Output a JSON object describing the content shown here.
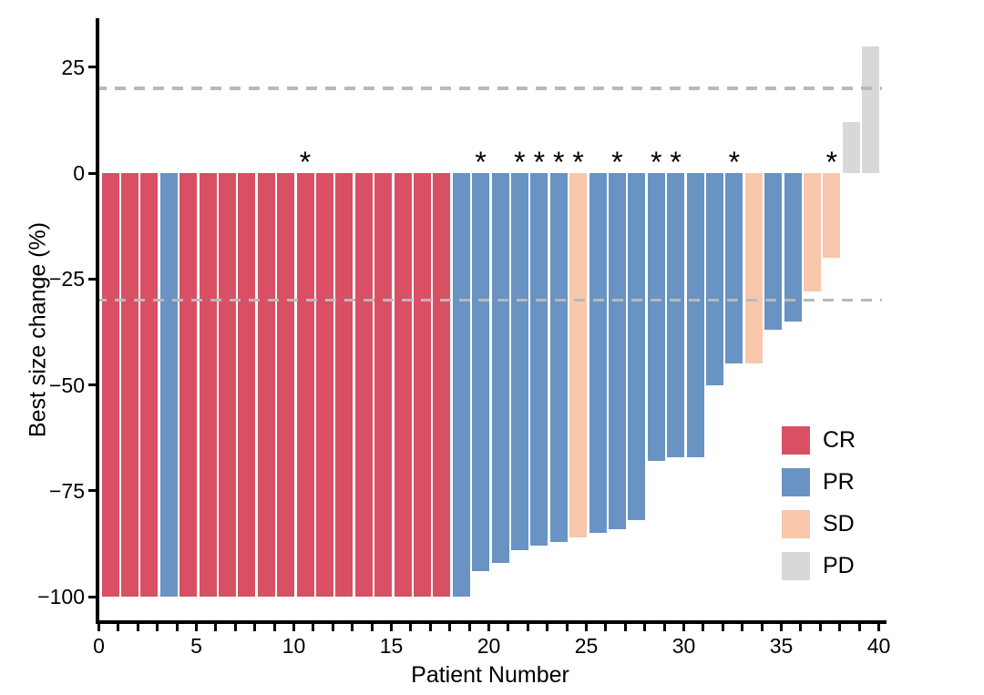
{
  "chart_data": {
    "type": "bar",
    "subtype": "waterfall",
    "title": "",
    "xlabel": "Patient Number",
    "ylabel": "Best size change (%)",
    "x_ticks": [
      0,
      5,
      10,
      15,
      20,
      25,
      30,
      35,
      40
    ],
    "x_minor_ticks_every": 1,
    "x_range": [
      0,
      40.3
    ],
    "y_ticks": [
      25,
      0,
      -25,
      -50,
      -75,
      -100
    ],
    "y_tick_labels": [
      "25",
      "0",
      "−25",
      "−50",
      "−75",
      "−100"
    ],
    "ylim": [
      -106,
      38
    ],
    "grid": false,
    "legend_position": "inside-right",
    "annotation_symbol": "*",
    "reference_lines": [
      {
        "y": 20,
        "style": "dashed",
        "color": "#b9b9b9"
      },
      {
        "y": -30,
        "style": "dashed",
        "color": "#b9b9b9"
      }
    ],
    "colors": {
      "CR": "#d95064",
      "PR": "#6993c3",
      "SD": "#f8c7ac",
      "PD": "#d8d8d8"
    },
    "legend": [
      {
        "label": "CR",
        "color": "#d95064"
      },
      {
        "label": "PR",
        "color": "#6993c3"
      },
      {
        "label": "SD",
        "color": "#f8c7ac"
      },
      {
        "label": "PD",
        "color": "#d8d8d8"
      }
    ],
    "patients": [
      {
        "n": 1,
        "best_change": -100,
        "response": "CR",
        "starred": false
      },
      {
        "n": 2,
        "best_change": -100,
        "response": "CR",
        "starred": false
      },
      {
        "n": 3,
        "best_change": -100,
        "response": "CR",
        "starred": false
      },
      {
        "n": 4,
        "best_change": -100,
        "response": "PR",
        "starred": false
      },
      {
        "n": 5,
        "best_change": -100,
        "response": "CR",
        "starred": false
      },
      {
        "n": 6,
        "best_change": -100,
        "response": "CR",
        "starred": false
      },
      {
        "n": 7,
        "best_change": -100,
        "response": "CR",
        "starred": false
      },
      {
        "n": 8,
        "best_change": -100,
        "response": "CR",
        "starred": false
      },
      {
        "n": 9,
        "best_change": -100,
        "response": "CR",
        "starred": false
      },
      {
        "n": 10,
        "best_change": -100,
        "response": "CR",
        "starred": false
      },
      {
        "n": 11,
        "best_change": -100,
        "response": "CR",
        "starred": true
      },
      {
        "n": 12,
        "best_change": -100,
        "response": "CR",
        "starred": false
      },
      {
        "n": 13,
        "best_change": -100,
        "response": "CR",
        "starred": false
      },
      {
        "n": 14,
        "best_change": -100,
        "response": "CR",
        "starred": false
      },
      {
        "n": 15,
        "best_change": -100,
        "response": "CR",
        "starred": false
      },
      {
        "n": 16,
        "best_change": -100,
        "response": "CR",
        "starred": false
      },
      {
        "n": 17,
        "best_change": -100,
        "response": "CR",
        "starred": false
      },
      {
        "n": 18,
        "best_change": -100,
        "response": "CR",
        "starred": false
      },
      {
        "n": 19,
        "best_change": -100,
        "response": "PR",
        "starred": false
      },
      {
        "n": 20,
        "best_change": -94,
        "response": "PR",
        "starred": true
      },
      {
        "n": 21,
        "best_change": -92,
        "response": "PR",
        "starred": false
      },
      {
        "n": 22,
        "best_change": -89,
        "response": "PR",
        "starred": true
      },
      {
        "n": 23,
        "best_change": -88,
        "response": "PR",
        "starred": true
      },
      {
        "n": 24,
        "best_change": -87,
        "response": "PR",
        "starred": true
      },
      {
        "n": 25,
        "best_change": -86,
        "response": "SD",
        "starred": true
      },
      {
        "n": 26,
        "best_change": -85,
        "response": "PR",
        "starred": false
      },
      {
        "n": 27,
        "best_change": -84,
        "response": "PR",
        "starred": true
      },
      {
        "n": 28,
        "best_change": -82,
        "response": "PR",
        "starred": false
      },
      {
        "n": 29,
        "best_change": -68,
        "response": "PR",
        "starred": true
      },
      {
        "n": 30,
        "best_change": -67,
        "response": "PR",
        "starred": true
      },
      {
        "n": 31,
        "best_change": -67,
        "response": "PR",
        "starred": false
      },
      {
        "n": 32,
        "best_change": -50,
        "response": "PR",
        "starred": false
      },
      {
        "n": 33,
        "best_change": -45,
        "response": "PR",
        "starred": true
      },
      {
        "n": 34,
        "best_change": -45,
        "response": "SD",
        "starred": false
      },
      {
        "n": 35,
        "best_change": -37,
        "response": "PR",
        "starred": false
      },
      {
        "n": 36,
        "best_change": -35,
        "response": "PR",
        "starred": false
      },
      {
        "n": 37,
        "best_change": -28,
        "response": "SD",
        "starred": false
      },
      {
        "n": 38,
        "best_change": -20,
        "response": "SD",
        "starred": true
      },
      {
        "n": 39,
        "best_change": 12,
        "response": "PD",
        "starred": false
      },
      {
        "n": 40,
        "best_change": 30,
        "response": "PD",
        "starred": false
      }
    ]
  }
}
